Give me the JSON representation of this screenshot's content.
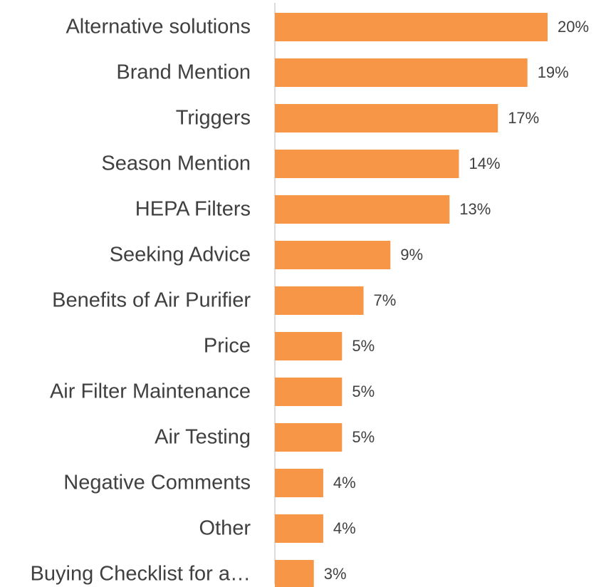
{
  "chart_data": {
    "type": "bar",
    "orientation": "horizontal",
    "categories": [
      "Alternative solutions",
      "Brand Mention",
      "Triggers",
      "Season Mention",
      "HEPA Filters",
      "Seeking Advice",
      "Benefits of Air Purifier",
      "Price",
      "Air Filter Maintenance",
      "Air Testing",
      "Negative Comments",
      "Other",
      "Buying Checklist for a…"
    ],
    "values": [
      20.3,
      18.8,
      16.6,
      13.7,
      13.0,
      8.6,
      6.6,
      5.0,
      5.0,
      5.0,
      3.6,
      3.6,
      2.9
    ],
    "value_labels": [
      "20%",
      "19%",
      "17%",
      "14%",
      "13%",
      "9%",
      "7%",
      "5%",
      "5%",
      "5%",
      "4%",
      "4%",
      "3%"
    ],
    "color": "#f79646"
  }
}
